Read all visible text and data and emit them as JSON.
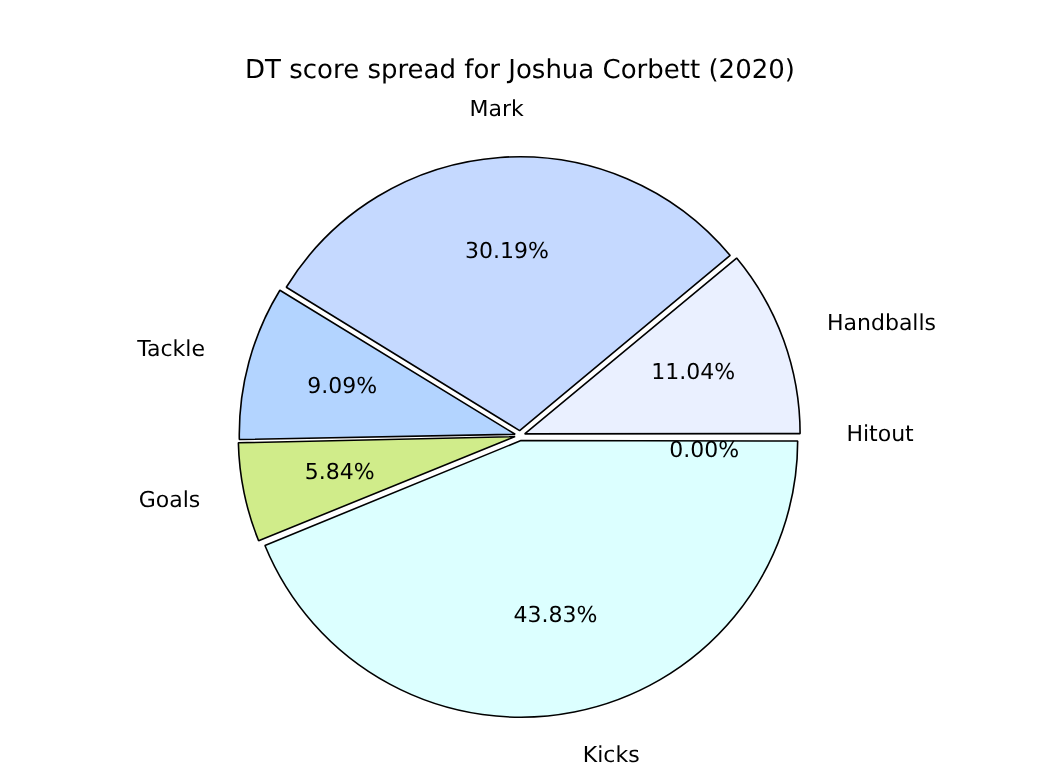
{
  "chart_data": {
    "type": "pie",
    "title": "DT score spread for Joshua Corbett (2020)",
    "categories": [
      "Handballs",
      "Mark",
      "Tackle",
      "Goals",
      "Kicks",
      "Hitout"
    ],
    "values": [
      11.04,
      30.19,
      9.09,
      5.84,
      43.83,
      0
    ],
    "value_labels": [
      "11.04%",
      "30.19%",
      "9.09%",
      "5.84%",
      "43.83%",
      "0.00%"
    ],
    "colors": [
      "#eaf0ff",
      "#c5d9ff",
      "#b3d4ff",
      "#d0ec8a",
      "#dcffff",
      "#b0b0b0"
    ],
    "legend": false
  }
}
